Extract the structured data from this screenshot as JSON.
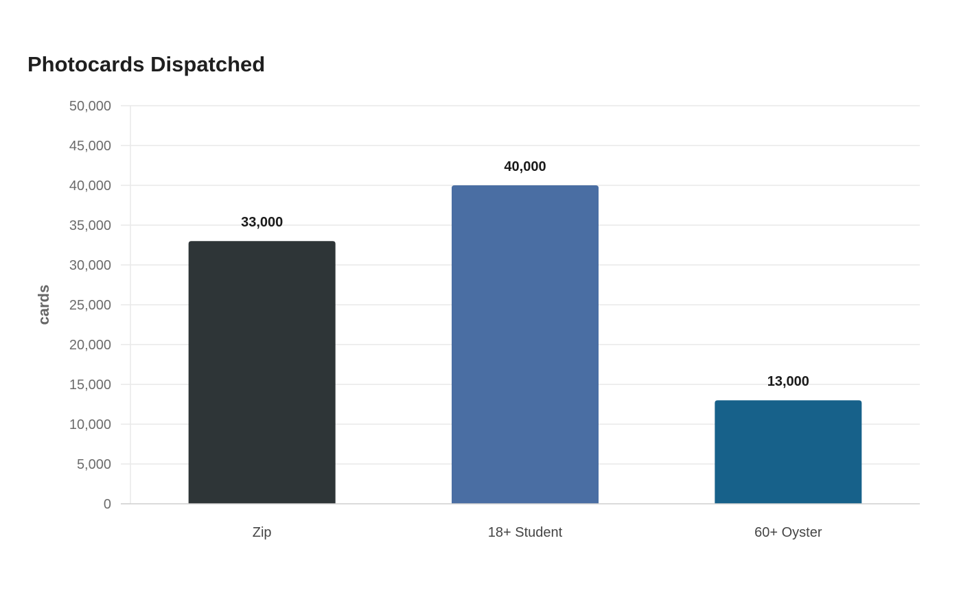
{
  "chart_data": {
    "type": "bar",
    "title": "Photocards Dispatched",
    "xlabel": "",
    "ylabel": "cards",
    "categories": [
      "Zip",
      "18+ Student",
      "60+ Oyster"
    ],
    "values": [
      33000,
      40000,
      13000
    ],
    "value_labels": [
      "33,000",
      "40,000",
      "13,000"
    ],
    "colors": [
      "#2e3537",
      "#4a6ea3",
      "#17618a"
    ],
    "ylim": [
      0,
      50000
    ],
    "yticks": [
      0,
      5000,
      10000,
      15000,
      20000,
      25000,
      30000,
      35000,
      40000,
      45000,
      50000
    ],
    "ytick_labels": [
      "0",
      "5,000",
      "10,000",
      "15,000",
      "20,000",
      "25,000",
      "30,000",
      "35,000",
      "40,000",
      "45,000",
      "50,000"
    ],
    "grid": true,
    "legend": "none"
  }
}
